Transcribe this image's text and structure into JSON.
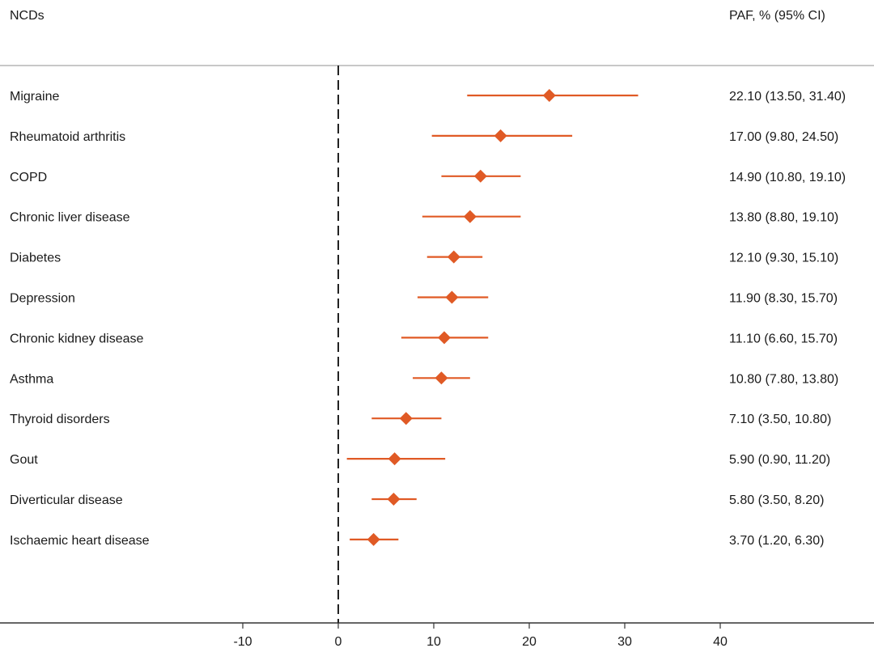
{
  "chart_data": {
    "type": "forest",
    "columns": {
      "label": "NCDs",
      "value": "PAF, % (95% CI)"
    },
    "xlim": [
      -20,
      55
    ],
    "xticks": [
      -10,
      0,
      10,
      20,
      30,
      40
    ],
    "reference_line": 0,
    "marker_color": "#e05a25",
    "rows": [
      {
        "label": "Migraine",
        "estimate": 22.1,
        "lower": 13.5,
        "upper": 31.4,
        "text": "22.10 (13.50, 31.40)"
      },
      {
        "label": "Rheumatoid arthritis",
        "estimate": 17.0,
        "lower": 9.8,
        "upper": 24.5,
        "text": "17.00 (9.80, 24.50)"
      },
      {
        "label": "COPD",
        "estimate": 14.9,
        "lower": 10.8,
        "upper": 19.1,
        "text": "14.90 (10.80, 19.10)"
      },
      {
        "label": "Chronic liver disease",
        "estimate": 13.8,
        "lower": 8.8,
        "upper": 19.1,
        "text": "13.80 (8.80, 19.10)"
      },
      {
        "label": "Diabetes",
        "estimate": 12.1,
        "lower": 9.3,
        "upper": 15.1,
        "text": "12.10 (9.30, 15.10)"
      },
      {
        "label": "Depression",
        "estimate": 11.9,
        "lower": 8.3,
        "upper": 15.7,
        "text": "11.90 (8.30, 15.70)"
      },
      {
        "label": "Chronic kidney disease",
        "estimate": 11.1,
        "lower": 6.6,
        "upper": 15.7,
        "text": "11.10 (6.60, 15.70)"
      },
      {
        "label": "Asthma",
        "estimate": 10.8,
        "lower": 7.8,
        "upper": 13.8,
        "text": "10.80 (7.80, 13.80)"
      },
      {
        "label": "Thyroid disorders",
        "estimate": 7.1,
        "lower": 3.5,
        "upper": 10.8,
        "text": "7.10 (3.50, 10.80)"
      },
      {
        "label": "Gout",
        "estimate": 5.9,
        "lower": 0.9,
        "upper": 11.2,
        "text": "5.90 (0.90, 11.20)"
      },
      {
        "label": "Diverticular disease",
        "estimate": 5.8,
        "lower": 3.5,
        "upper": 8.2,
        "text": "5.80 (3.50, 8.20)"
      },
      {
        "label": "Ischaemic heart disease",
        "estimate": 3.7,
        "lower": 1.2,
        "upper": 6.3,
        "text": "3.70 (1.20, 6.30)"
      }
    ]
  }
}
